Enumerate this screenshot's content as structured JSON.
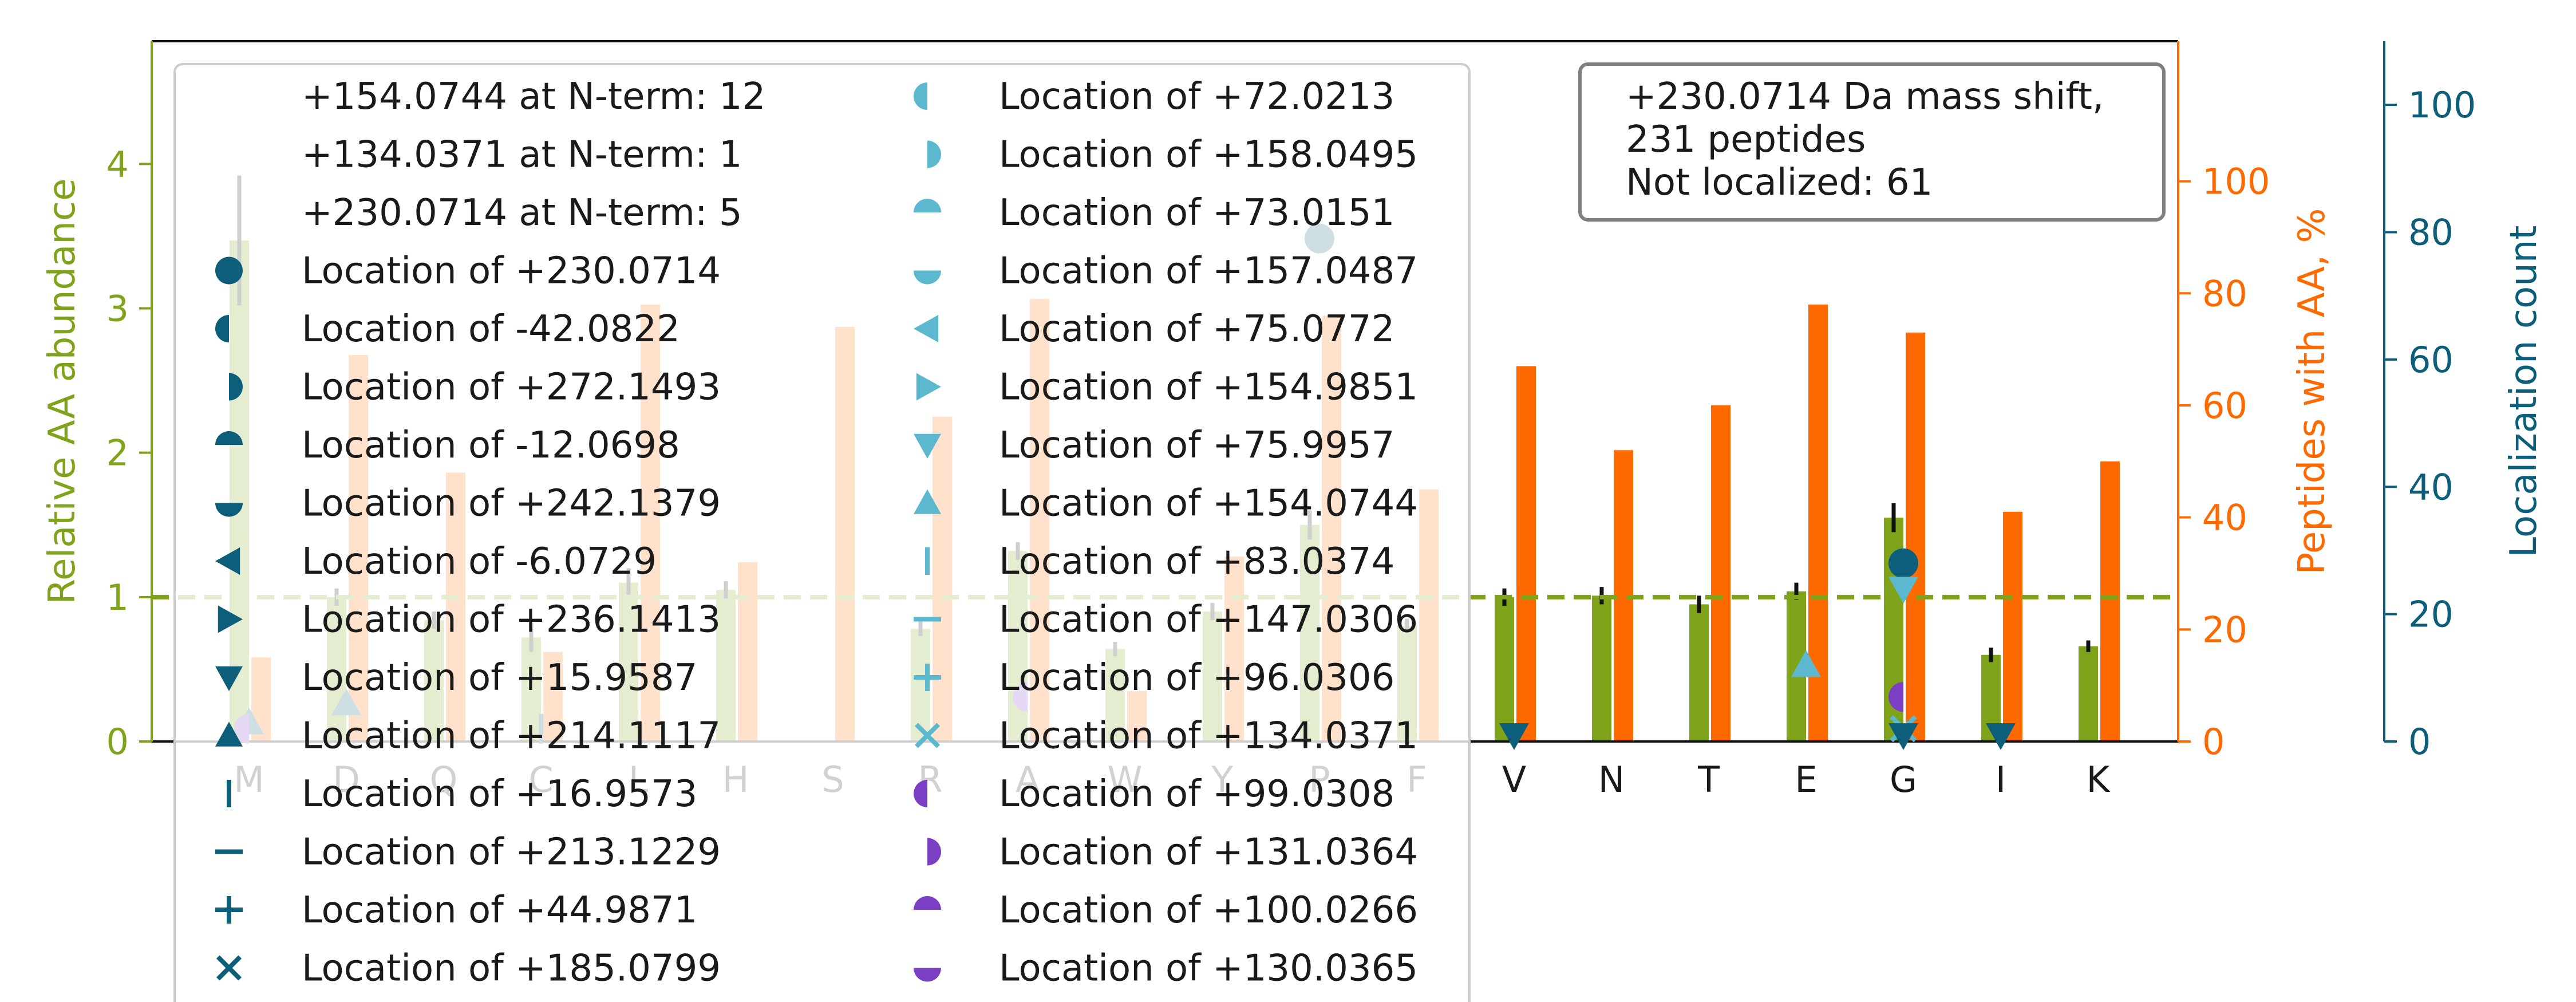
{
  "chart_data": {
    "type": "bar",
    "categories": [
      "M",
      "D",
      "Q",
      "C",
      "L",
      "H",
      "S",
      "R",
      "A",
      "W",
      "Y",
      "P",
      "F",
      "V",
      "N",
      "T",
      "E",
      "G",
      "I",
      "K"
    ],
    "relative_abundance": [
      3.47,
      1.0,
      0.84,
      0.72,
      1.1,
      1.05,
      0.0,
      0.78,
      1.32,
      0.64,
      0.9,
      1.5,
      0.8,
      1.0,
      1.01,
      0.95,
      1.04,
      1.55,
      0.6,
      0.66
    ],
    "abundance_error": [
      0.45,
      0.06,
      0.06,
      0.1,
      0.1,
      0.06,
      0.0,
      0.05,
      0.06,
      0.05,
      0.06,
      0.1,
      0.05,
      0.06,
      0.06,
      0.06,
      0.06,
      0.1,
      0.05,
      0.04
    ],
    "peptides_with_aa_percent": [
      15,
      69,
      48,
      16,
      78,
      32,
      74,
      58,
      79,
      9,
      33,
      76,
      45,
      67,
      52,
      60,
      78,
      73,
      41,
      50
    ],
    "localization_points": [
      {
        "aa": "M",
        "mod": "+214.1117",
        "count": 3
      },
      {
        "aa": "M",
        "mod": "+99.0308",
        "count": 2
      },
      {
        "aa": "D",
        "mod": "+214.1117",
        "count": 6
      },
      {
        "aa": "C",
        "mod": "+16.9573",
        "count": 2
      },
      {
        "aa": "A",
        "mod": "+99.0308",
        "count": 7
      },
      {
        "aa": "P",
        "mod": "+230.0714",
        "count": 79
      },
      {
        "aa": "V",
        "mod": "+15.9587",
        "count": 1
      },
      {
        "aa": "E",
        "mod": "+154.0744",
        "count": 12
      },
      {
        "aa": "G",
        "mod": "+230.0714",
        "count": 28
      },
      {
        "aa": "G",
        "mod": "+75.9957",
        "count": 24
      },
      {
        "aa": "G",
        "mod": "+99.0308",
        "count": 7
      },
      {
        "aa": "G",
        "mod": "+134.0371",
        "count": 2
      },
      {
        "aa": "G",
        "mod": "+15.9587",
        "count": 1
      },
      {
        "aa": "I",
        "mod": "+15.9587",
        "count": 1
      }
    ],
    "y_left_label": "Relative AA abundance",
    "y_left_range": [
      0,
      4.85
    ],
    "y_left_ticks": [
      0,
      1,
      2,
      3,
      4
    ],
    "y_mid_label": "Peptides with AA, %",
    "y_mid_range": [
      0,
      125
    ],
    "y_mid_ticks": [
      0,
      20,
      40,
      60,
      80,
      100
    ],
    "y_right_label": "Localization count",
    "y_right_range": [
      0,
      110
    ],
    "y_right_ticks": [
      0,
      20,
      40,
      60,
      80,
      100
    ],
    "reference_line": 1.0,
    "legend_placement": "upper-left",
    "legend_col1": [
      {
        "label": "+154.0744 at N-term: 12",
        "marker": "none",
        "color": "#0d5e7a"
      },
      {
        "label": "+134.0371 at N-term: 1",
        "marker": "none",
        "color": "#0d5e7a"
      },
      {
        "label": "+230.0714 at N-term: 5",
        "marker": "none",
        "color": "#0d5e7a"
      },
      {
        "label": "Location of +230.0714",
        "marker": "circle",
        "color": "#0d5e7a"
      },
      {
        "label": "Location of -42.0822",
        "marker": "half-left",
        "color": "#0d5e7a"
      },
      {
        "label": "Location of +272.1493",
        "marker": "half-right",
        "color": "#0d5e7a"
      },
      {
        "label": "Location of -12.0698",
        "marker": "half-top",
        "color": "#0d5e7a"
      },
      {
        "label": "Location of +242.1379",
        "marker": "half-bottom",
        "color": "#0d5e7a"
      },
      {
        "label": "Location of -6.0729",
        "marker": "tri-left",
        "color": "#0d5e7a"
      },
      {
        "label": "Location of +236.1413",
        "marker": "tri-right",
        "color": "#0d5e7a"
      },
      {
        "label": "Location of +15.9587",
        "marker": "tri-down",
        "color": "#0d5e7a"
      },
      {
        "label": "Location of +214.1117",
        "marker": "tri-up",
        "color": "#0d5e7a"
      },
      {
        "label": "Location of +16.9573",
        "marker": "vline",
        "color": "#0d5e7a"
      },
      {
        "label": "Location of +213.1229",
        "marker": "hline",
        "color": "#0d5e7a"
      },
      {
        "label": "Location of +44.9871",
        "marker": "plus",
        "color": "#0d5e7a"
      },
      {
        "label": "Location of +185.0799",
        "marker": "x",
        "color": "#0d5e7a"
      }
    ],
    "legend_col2": [
      {
        "label": "Location of +72.0213",
        "marker": "half-left",
        "color": "#5bb8cf"
      },
      {
        "label": "Location of +158.0495",
        "marker": "half-right",
        "color": "#5bb8cf"
      },
      {
        "label": "Location of +73.0151",
        "marker": "half-top",
        "color": "#5bb8cf"
      },
      {
        "label": "Location of +157.0487",
        "marker": "half-bottom",
        "color": "#5bb8cf"
      },
      {
        "label": "Location of +75.0772",
        "marker": "tri-left",
        "color": "#5bb8cf"
      },
      {
        "label": "Location of +154.9851",
        "marker": "tri-right",
        "color": "#5bb8cf"
      },
      {
        "label": "Location of +75.9957",
        "marker": "tri-down",
        "color": "#5bb8cf"
      },
      {
        "label": "Location of +154.0744",
        "marker": "tri-up",
        "color": "#5bb8cf"
      },
      {
        "label": "Location of +83.0374",
        "marker": "vline",
        "color": "#5bb8cf"
      },
      {
        "label": "Location of +147.0306",
        "marker": "hline",
        "color": "#5bb8cf"
      },
      {
        "label": "Location of +96.0306",
        "marker": "plus",
        "color": "#5bb8cf"
      },
      {
        "label": "Location of +134.0371",
        "marker": "x",
        "color": "#5bb8cf"
      },
      {
        "label": "Location of +99.0308",
        "marker": "half-left",
        "color": "#7b3fc4"
      },
      {
        "label": "Location of +131.0364",
        "marker": "half-right",
        "color": "#7b3fc4"
      },
      {
        "label": "Location of +100.0266",
        "marker": "half-top",
        "color": "#7b3fc4"
      },
      {
        "label": "Location of +130.0365",
        "marker": "half-bottom",
        "color": "#7b3fc4"
      }
    ],
    "info_box": [
      "+230.0714 Da mass shift,",
      "231 peptides",
      "Not localized: 61"
    ],
    "colors": {
      "abundance": "#7fa31a",
      "peptides": "#ff6a00",
      "localization": "#0d5e7a",
      "light_blue": "#5bb8cf",
      "purple": "#7b3fc4"
    }
  }
}
